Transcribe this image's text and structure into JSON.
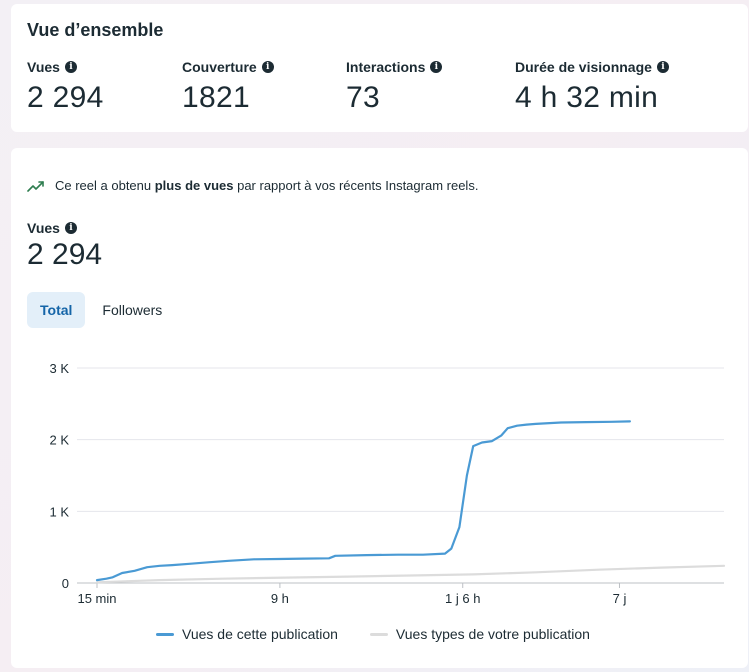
{
  "overview": {
    "title": "Vue d’ensemble",
    "metrics": [
      {
        "label": "Vues",
        "value": "2 294"
      },
      {
        "label": "Couverture",
        "value": "1821"
      },
      {
        "label": "Interactions",
        "value": "73"
      },
      {
        "label": "Durée de visionnage",
        "value": "4 h 32 min"
      }
    ]
  },
  "detail": {
    "insight_prefix": "Ce reel a obtenu ",
    "insight_bold": "plus de vues",
    "insight_suffix": " par rapport à vos récents Instagram reels.",
    "views_label": "Vues",
    "views_value": "2 294",
    "tabs": [
      {
        "label": "Total",
        "active": true
      },
      {
        "label": "Followers",
        "active": false
      }
    ]
  },
  "icons": {
    "info": "info-icon",
    "trend": "trending-up-icon"
  },
  "colors": {
    "series_post": "#4a9ad4",
    "series_typical": "#dcdcdc",
    "grid": "#e4e6eb",
    "tab_active_bg": "#e3eff9",
    "tab_active_text": "#1565a8"
  },
  "chart_data": {
    "type": "line",
    "title": "",
    "xlabel": "",
    "ylabel": "",
    "ylim": [
      0,
      3000
    ],
    "y_ticks": [
      0,
      1000,
      2000,
      3000
    ],
    "y_tick_labels": [
      "0",
      "1 K",
      "2 K",
      "3 K"
    ],
    "x_tick_labels": [
      "15 min",
      "9 h",
      "1 j 6 h",
      "7 j"
    ],
    "x_tick_positions": [
      0,
      0.2917,
      0.5833,
      0.8333
    ],
    "series": [
      {
        "name": "Vues de cette publication",
        "color": "#4a9ad4",
        "points": [
          [
            0.0,
            40
          ],
          [
            0.015,
            60
          ],
          [
            0.025,
            80
          ],
          [
            0.04,
            140
          ],
          [
            0.06,
            170
          ],
          [
            0.08,
            220
          ],
          [
            0.1,
            240
          ],
          [
            0.12,
            250
          ],
          [
            0.15,
            270
          ],
          [
            0.18,
            290
          ],
          [
            0.21,
            310
          ],
          [
            0.25,
            330
          ],
          [
            0.29,
            335
          ],
          [
            0.33,
            340
          ],
          [
            0.37,
            345
          ],
          [
            0.38,
            380
          ],
          [
            0.43,
            390
          ],
          [
            0.48,
            395
          ],
          [
            0.52,
            395
          ],
          [
            0.555,
            410
          ],
          [
            0.565,
            480
          ],
          [
            0.578,
            780
          ],
          [
            0.59,
            1500
          ],
          [
            0.6,
            1910
          ],
          [
            0.614,
            1960
          ],
          [
            0.63,
            1980
          ],
          [
            0.645,
            2060
          ],
          [
            0.655,
            2160
          ],
          [
            0.67,
            2195
          ],
          [
            0.685,
            2210
          ],
          [
            0.7,
            2220
          ],
          [
            0.74,
            2240
          ],
          [
            0.78,
            2245
          ],
          [
            0.82,
            2250
          ],
          [
            0.85,
            2255
          ]
        ]
      },
      {
        "name": "Vues types de votre publication",
        "color": "#dcdcdc",
        "points": [
          [
            0.0,
            10
          ],
          [
            0.05,
            25
          ],
          [
            0.1,
            40
          ],
          [
            0.2,
            60
          ],
          [
            0.3,
            75
          ],
          [
            0.4,
            90
          ],
          [
            0.5,
            105
          ],
          [
            0.6,
            120
          ],
          [
            0.7,
            150
          ],
          [
            0.8,
            185
          ],
          [
            0.9,
            215
          ],
          [
            1.0,
            240
          ]
        ]
      }
    ]
  }
}
